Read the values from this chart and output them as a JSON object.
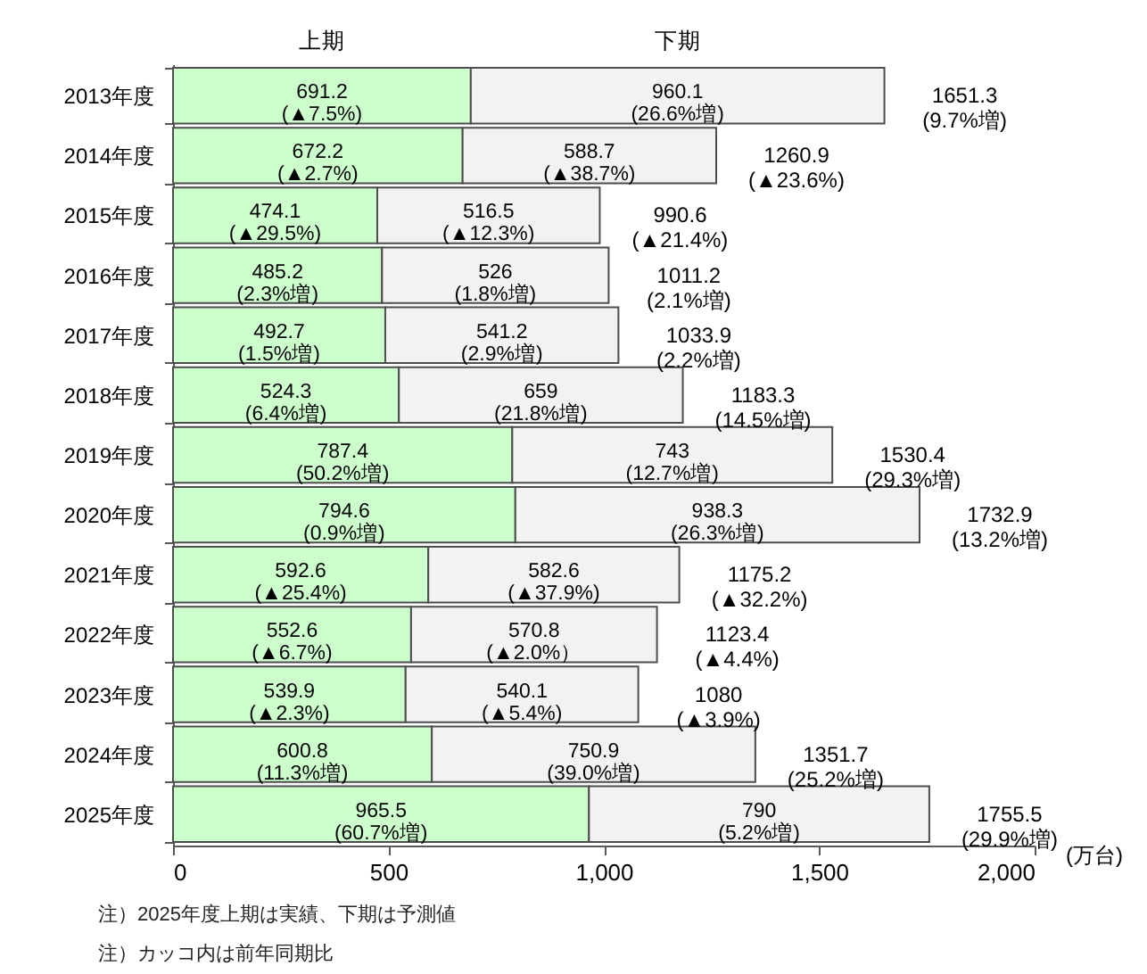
{
  "chart_data": {
    "type": "bar",
    "orientation": "horizontal",
    "stacked": true,
    "categories": [
      "2013年度",
      "2014年度",
      "2015年度",
      "2016年度",
      "2017年度",
      "2018年度",
      "2019年度",
      "2020年度",
      "2021年度",
      "2022年度",
      "2023年度",
      "2024年度",
      "2025年度"
    ],
    "series": [
      {
        "name": "上期",
        "color": "#ccffcc",
        "values": [
          691.2,
          672.2,
          474.1,
          485.2,
          492.7,
          524.3,
          787.4,
          794.6,
          592.6,
          552.6,
          539.9,
          600.8,
          965.5
        ],
        "value_labels": [
          "691.2\n(▲7.5%)",
          "672.2\n(▲2.7%)",
          "474.1\n(▲29.5%)",
          "485.2\n(2.3%増)",
          "492.7\n(1.5%増)",
          "524.3\n(6.4%増)",
          "787.4\n(50.2%増)",
          "794.6\n(0.9%増)",
          "592.6\n(▲25.4%)",
          "552.6\n(▲6.7%)",
          "539.9\n(▲2.3%)",
          "600.8\n(11.3%増)",
          "965.5\n(60.7%増)"
        ]
      },
      {
        "name": "下期",
        "color": "#f2f2f2",
        "values": [
          960.1,
          588.7,
          516.5,
          526,
          541.2,
          659,
          743,
          938.3,
          582.6,
          570.8,
          540.1,
          750.9,
          790
        ],
        "value_labels": [
          "960.1\n(26.6%増)",
          "588.7\n(▲38.7%)",
          "516.5\n(▲12.3%)",
          "526\n(1.8%増)",
          "541.2\n(2.9%増)",
          "659\n(21.8%増)",
          "743\n(12.7%増)",
          "938.3\n(26.3%増)",
          "582.6\n(▲37.9%)",
          "570.8\n(▲2.0%）",
          "540.1\n(▲5.4%)",
          "750.9\n(39.0%増)",
          "790\n(5.2%増)"
        ]
      }
    ],
    "totals": [
      "1651.3\n(9.7%増)",
      "1260.9\n(▲23.6%)",
      "990.6\n(▲21.4%)",
      "1011.2\n(2.1%増)",
      "1033.9\n(2.2%増)",
      "1183.3\n(14.5%増)",
      "1530.4\n(29.3%増)",
      "1732.9\n(13.2%増)",
      "1175.2\n(▲32.2%)",
      "1123.4\n(▲4.4%)",
      "1080\n(▲3.9%)",
      "1351.7\n(25.2%増)",
      "1755.5\n(29.9%増)"
    ],
    "xlabel": "(万台)",
    "xlim": [
      0,
      2000
    ],
    "xticks": [
      0,
      500,
      {
        "value": 1000,
        "label": "1,000"
      },
      {
        "value": 1500,
        "label": "1,500"
      },
      {
        "value": 2000,
        "label": "2,000"
      }
    ],
    "annotations": [
      "注）2025年度上期は実績、下期は予測値",
      "注）カッコ内は前年同期比"
    ]
  }
}
